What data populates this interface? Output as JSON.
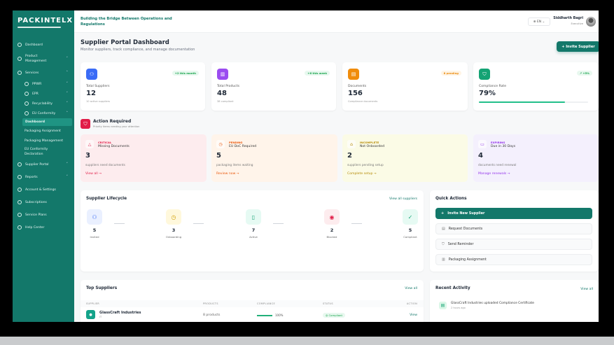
{
  "brand": {
    "logo": "PACKINTELX",
    "tagline": "Building the Bridge Between Operations and Regulations"
  },
  "header": {
    "language": "EN",
    "user_name": "Siddharth Bagri",
    "user_role": "Executive"
  },
  "sidebar": {
    "items": [
      {
        "label": "Dashboard",
        "icon": "home-icon"
      },
      {
        "label": "Product Management",
        "icon": "box-icon",
        "chevron": "down"
      },
      {
        "label": "Services",
        "icon": "gear-icon",
        "chevron": "up"
      },
      {
        "label": "PPWR",
        "icon": "recycle-icon",
        "chevron": "down",
        "level": 1
      },
      {
        "label": "EPR",
        "icon": "refresh-icon",
        "chevron": "down",
        "level": 1
      },
      {
        "label": "Recyclability",
        "icon": "leaf-icon",
        "chevron": "down",
        "level": 1
      },
      {
        "label": "EU Conformity",
        "icon": "globe-icon",
        "chevron": "up",
        "level": 1
      },
      {
        "label": "Dashboard",
        "level": 2,
        "active": true
      },
      {
        "label": "Packaging Assignment",
        "level": 2
      },
      {
        "label": "Packaging Management",
        "level": 2
      },
      {
        "label": "EU Conformity Declaration",
        "level": 2
      },
      {
        "label": "Supplier Portal",
        "icon": "users-icon",
        "chevron": "down"
      },
      {
        "label": "Reports",
        "icon": "file-icon",
        "chevron": "down"
      },
      {
        "label": "Account & Settings",
        "icon": "settings-icon"
      },
      {
        "label": "Subscriptions",
        "icon": "card-icon"
      },
      {
        "label": "Service Plans",
        "icon": "plan-icon"
      },
      {
        "label": "Help Center",
        "icon": "help-icon"
      }
    ]
  },
  "page": {
    "title": "Supplier Portal Dashboard",
    "subtitle": "Monitor suppliers, track compliance, and manage documentation",
    "invite_button": "+  Invite Supplier"
  },
  "stats": [
    {
      "label": "Total Suppliers",
      "value": "12",
      "sub": "10 active suppliers",
      "badge": "+2 this month",
      "color": "#3b6cf6",
      "badge_color": "#16a34a",
      "badge_bg": "#e8f8ef"
    },
    {
      "label": "Total Products",
      "value": "48",
      "sub": "38 compliant",
      "badge": "+6 this week",
      "color": "#9b4cf0",
      "badge_color": "#16a34a",
      "badge_bg": "#e8f8ef"
    },
    {
      "label": "Documents",
      "value": "156",
      "sub": "Compliance documents",
      "badge": "8 pending",
      "color": "#f08c0c",
      "badge_color": "#ea8a0c",
      "badge_bg": "#fff4e5"
    },
    {
      "label": "Compliance Rate",
      "value": "79%",
      "badge": "↗ +5%",
      "color": "#14a374",
      "badge_color": "#16a34a",
      "badge_bg": "#e8f8ef",
      "progress": 79
    }
  ],
  "action_required": {
    "title": "Action Required",
    "subtitle": "Priority items needing your attention",
    "cards": [
      {
        "tag": "CRITICAL",
        "name": "Missing Documents",
        "value": "3",
        "desc": "suppliers need documents",
        "link": "View all →",
        "accent": "#e11d48",
        "bg": "#fdecee"
      },
      {
        "tag": "PENDING",
        "name": "EU DoC Required",
        "value": "5",
        "desc": "packaging items waiting",
        "link": "Review now →",
        "accent": "#ea580c",
        "bg": "#fff4ea"
      },
      {
        "tag": "INCOMPLETE",
        "name": "Not Onboarded",
        "value": "2",
        "desc": "suppliers pending setup",
        "link": "Complete setup →",
        "accent": "#b58a06",
        "bg": "#fbfbe6"
      },
      {
        "tag": "EXPIRING",
        "name": "Due in 30 Days",
        "value": "4",
        "desc": "documents need renewal",
        "link": "Manage renewals →",
        "accent": "#9333ea",
        "bg": "#f4f0fd"
      }
    ]
  },
  "lifecycle": {
    "title": "Supplier Lifecycle",
    "link": "View all suppliers",
    "stages": [
      {
        "label": "Invited",
        "value": "5",
        "color": "#3b6cf6",
        "bg": "#eaf0ff",
        "icon": "users-icon"
      },
      {
        "label": "Onboarding",
        "value": "3",
        "color": "#d4a20a",
        "bg": "#fff8dc",
        "icon": "clock-icon"
      },
      {
        "label": "Active",
        "value": "7",
        "color": "#14a374",
        "bg": "#e6faf3",
        "icon": "building-icon"
      },
      {
        "label": "Blocked",
        "value": "2",
        "color": "#e11d48",
        "bg": "#fdecee",
        "icon": "block-icon"
      },
      {
        "label": "Compliant",
        "value": "5",
        "color": "#14a374",
        "bg": "#e6faf3",
        "icon": "check-icon"
      }
    ]
  },
  "quick_actions": {
    "title": "Quick Actions",
    "items": [
      {
        "label": "Invite New Supplier",
        "icon": "plus-icon",
        "primary": true
      },
      {
        "label": "Request Documents",
        "icon": "document-icon"
      },
      {
        "label": "Send Reminder",
        "icon": "shield-icon"
      },
      {
        "label": "Packaging Assignment",
        "icon": "bar-chart-icon"
      }
    ]
  },
  "top_suppliers": {
    "title": "Top Suppliers",
    "link": "View all",
    "columns": [
      "SUPPLIER",
      "PRODUCTS",
      "COMPLIANCE",
      "STATUS",
      "ACTION"
    ],
    "rows": [
      {
        "name": "GlassCraft Industries",
        "sub": "IT",
        "products": "8 products",
        "compliance": "100%",
        "compliance_value": 100,
        "status": "Compliant",
        "action": "View"
      }
    ]
  },
  "recent_activity": {
    "title": "Recent Activity",
    "link": "View all",
    "items": [
      {
        "text": "GlassCraft Industries uploaded Compliance Certificate",
        "time": "2 hours ago"
      }
    ]
  }
}
